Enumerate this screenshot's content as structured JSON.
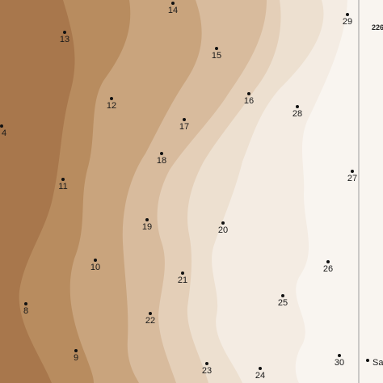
{
  "map": {
    "contour_colors": [
      "#a8774c",
      "#b88c5f",
      "#c9a47d",
      "#d8bb9d",
      "#e4cfb8",
      "#ede0d0",
      "#f4ece3",
      "#f9f5f0"
    ],
    "side_label": "226",
    "legend_label": "Sa",
    "points": [
      {
        "id": "8"
      },
      {
        "id": "9"
      },
      {
        "id": "10"
      },
      {
        "id": "11"
      },
      {
        "id": "12"
      },
      {
        "id": "13"
      },
      {
        "id": "14"
      },
      {
        "id": "15"
      },
      {
        "id": "16"
      },
      {
        "id": "17"
      },
      {
        "id": "18"
      },
      {
        "id": "19"
      },
      {
        "id": "20"
      },
      {
        "id": "21"
      },
      {
        "id": "22"
      },
      {
        "id": "23"
      },
      {
        "id": "24"
      },
      {
        "id": "25"
      },
      {
        "id": "26"
      },
      {
        "id": "27"
      },
      {
        "id": "28"
      },
      {
        "id": "29"
      },
      {
        "id": "30"
      },
      {
        "id": "4"
      }
    ]
  }
}
